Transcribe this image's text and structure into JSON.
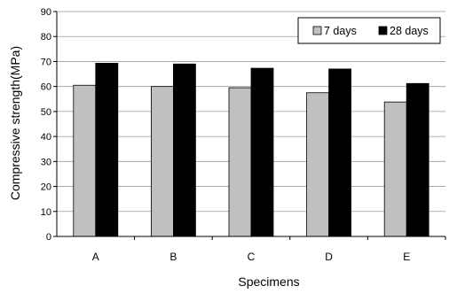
{
  "chart_data": {
    "type": "bar",
    "title": "",
    "xlabel": "Specimens",
    "ylabel": "Compressive strength(MPa)",
    "categories": [
      "A",
      "B",
      "C",
      "D",
      "E"
    ],
    "ylim": [
      0,
      90
    ],
    "yticks": [
      0,
      10,
      20,
      30,
      40,
      50,
      60,
      70,
      80,
      90
    ],
    "grid": true,
    "legend": "top-right",
    "series": [
      {
        "name": "7 days",
        "color": "#c0c0c0",
        "values": [
          60.5,
          60.0,
          59.5,
          57.5,
          53.8
        ]
      },
      {
        "name": "28 days",
        "color": "#000000",
        "values": [
          69.3,
          69.0,
          67.3,
          67.0,
          61.2
        ]
      }
    ]
  }
}
